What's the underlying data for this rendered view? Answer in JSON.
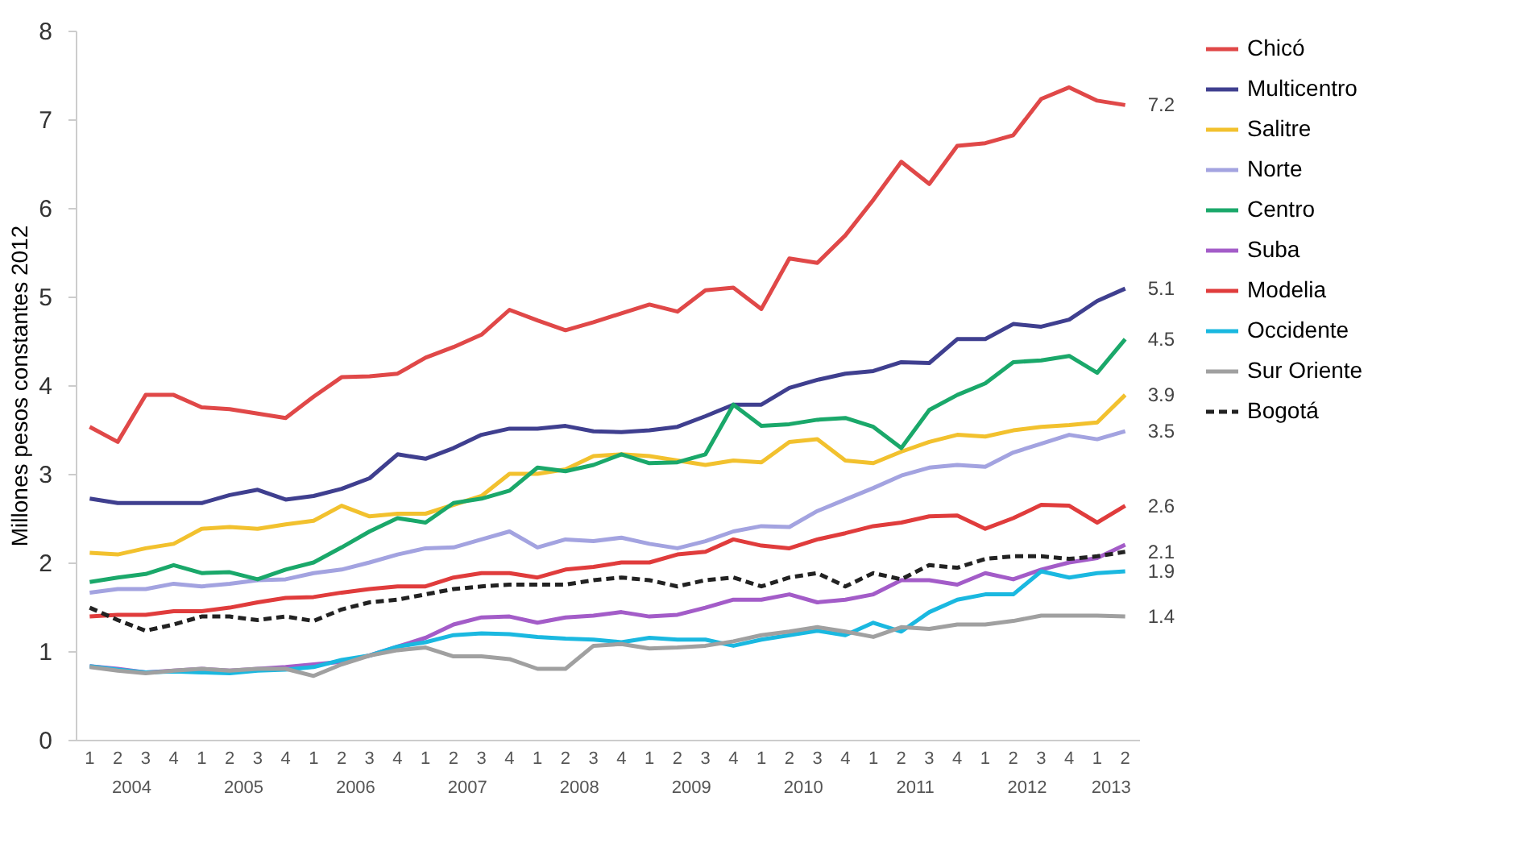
{
  "chart_data": {
    "type": "line",
    "ylabel": "Millones pesos constantes 2012",
    "ylim": [
      0,
      8
    ],
    "yticks": [
      0,
      1,
      2,
      3,
      4,
      5,
      6,
      7,
      8
    ],
    "grid": false,
    "legend": "right",
    "marker": "none",
    "categories": [
      "1",
      "2",
      "3",
      "4",
      "1",
      "2",
      "3",
      "4",
      "1",
      "2",
      "3",
      "4",
      "1",
      "2",
      "3",
      "4",
      "1",
      "2",
      "3",
      "4",
      "1",
      "2",
      "3",
      "4",
      "1",
      "2",
      "3",
      "4",
      "1",
      "2",
      "3",
      "4",
      "1",
      "2",
      "3",
      "4",
      "1",
      "2"
    ],
    "annotations": [
      "2004",
      "2005",
      "2006",
      "2007",
      "2008",
      "2009",
      "2010",
      "2011",
      "2012",
      "2013"
    ],
    "series": [
      {
        "name": "Chicó",
        "color": "#e04848",
        "values": [
          3.53,
          3.36,
          3.89,
          3.89,
          3.75,
          3.73,
          3.68,
          3.63,
          3.87,
          4.09,
          4.1,
          4.13,
          4.31,
          4.43,
          4.57,
          4.85,
          4.73,
          4.62,
          4.71,
          4.81,
          4.91,
          4.83,
          5.07,
          5.1,
          4.86,
          5.43,
          5.38,
          5.69,
          6.09,
          6.52,
          6.27,
          6.7,
          6.73,
          6.82,
          7.23,
          7.36,
          7.21,
          7.16
        ],
        "value_labels": [
          null,
          null,
          null,
          null,
          null,
          null,
          null,
          null,
          null,
          null,
          null,
          null,
          null,
          null,
          null,
          null,
          null,
          null,
          null,
          null,
          null,
          null,
          null,
          null,
          null,
          null,
          null,
          null,
          null,
          null,
          null,
          null,
          null,
          null,
          null,
          null,
          null,
          "7.2"
        ]
      },
      {
        "name": "Multicentro",
        "color": "#3f3f8f",
        "values": [
          2.72,
          2.67,
          2.67,
          2.67,
          2.67,
          2.76,
          2.82,
          2.71,
          2.75,
          2.83,
          2.95,
          3.22,
          3.17,
          3.29,
          3.44,
          3.51,
          3.51,
          3.54,
          3.48,
          3.47,
          3.49,
          3.53,
          3.65,
          3.78,
          3.78,
          3.97,
          4.06,
          4.13,
          4.16,
          4.26,
          4.25,
          4.52,
          4.52,
          4.69,
          4.66,
          4.74,
          4.95,
          5.09
        ],
        "value_labels": [
          null,
          null,
          null,
          null,
          null,
          null,
          null,
          null,
          null,
          null,
          null,
          null,
          null,
          null,
          null,
          null,
          null,
          null,
          null,
          null,
          null,
          null,
          null,
          null,
          null,
          null,
          null,
          null,
          null,
          null,
          null,
          null,
          null,
          null,
          null,
          null,
          null,
          "5.1"
        ]
      },
      {
        "name": "Salitre",
        "color": "#f2c12e",
        "values": [
          2.11,
          2.09,
          2.16,
          2.21,
          2.38,
          2.4,
          2.38,
          2.43,
          2.47,
          2.64,
          2.52,
          2.55,
          2.55,
          2.65,
          2.75,
          3.0,
          3.0,
          3.05,
          3.2,
          3.22,
          3.2,
          3.15,
          3.1,
          3.15,
          3.13,
          3.36,
          3.39,
          3.15,
          3.12,
          3.25,
          3.36,
          3.44,
          3.42,
          3.49,
          3.53,
          3.55,
          3.58,
          3.89
        ],
        "value_labels": [
          null,
          null,
          null,
          null,
          null,
          null,
          null,
          null,
          null,
          null,
          null,
          null,
          null,
          null,
          null,
          null,
          null,
          null,
          null,
          null,
          null,
          null,
          null,
          null,
          null,
          null,
          null,
          null,
          null,
          null,
          null,
          null,
          null,
          null,
          null,
          null,
          null,
          "3.9"
        ]
      },
      {
        "name": "Norte",
        "color": "#a3a3e0",
        "values": [
          1.66,
          1.7,
          1.7,
          1.76,
          1.73,
          1.76,
          1.8,
          1.81,
          1.88,
          1.92,
          2.0,
          2.09,
          2.16,
          2.17,
          2.26,
          2.35,
          2.17,
          2.26,
          2.24,
          2.28,
          2.21,
          2.16,
          2.24,
          2.35,
          2.41,
          2.4,
          2.58,
          2.71,
          2.84,
          2.98,
          3.07,
          3.1,
          3.08,
          3.24,
          3.34,
          3.44,
          3.39,
          3.48
        ],
        "value_labels": [
          null,
          null,
          null,
          null,
          null,
          null,
          null,
          null,
          null,
          null,
          null,
          null,
          null,
          null,
          null,
          null,
          null,
          null,
          null,
          null,
          null,
          null,
          null,
          null,
          null,
          null,
          null,
          null,
          null,
          null,
          null,
          null,
          null,
          null,
          null,
          null,
          null,
          "3.5"
        ]
      },
      {
        "name": "Centro",
        "color": "#1aa86a",
        "values": [
          1.78,
          1.83,
          1.87,
          1.97,
          1.88,
          1.89,
          1.81,
          1.92,
          2.0,
          2.17,
          2.35,
          2.5,
          2.45,
          2.67,
          2.72,
          2.81,
          3.07,
          3.03,
          3.1,
          3.22,
          3.12,
          3.13,
          3.22,
          3.78,
          3.54,
          3.56,
          3.61,
          3.63,
          3.53,
          3.29,
          3.72,
          3.89,
          4.02,
          4.26,
          4.28,
          4.33,
          4.14,
          4.52
        ],
        "value_labels": [
          null,
          null,
          null,
          null,
          null,
          null,
          null,
          null,
          null,
          null,
          null,
          null,
          null,
          null,
          null,
          null,
          null,
          null,
          null,
          null,
          null,
          null,
          null,
          null,
          null,
          null,
          null,
          null,
          null,
          null,
          null,
          null,
          null,
          null,
          null,
          null,
          null,
          "4.5"
        ]
      },
      {
        "name": "Suba",
        "color": "#a35cc8",
        "values": [
          0.83,
          0.8,
          0.76,
          0.78,
          0.8,
          0.78,
          0.8,
          0.82,
          0.85,
          0.88,
          0.95,
          1.05,
          1.15,
          1.3,
          1.38,
          1.39,
          1.32,
          1.38,
          1.4,
          1.44,
          1.39,
          1.41,
          1.49,
          1.58,
          1.58,
          1.64,
          1.55,
          1.58,
          1.64,
          1.8,
          1.8,
          1.75,
          1.88,
          1.81,
          1.92,
          2.0,
          2.05,
          2.2
        ]
      },
      {
        "name": "Modelia",
        "color": "#e03c3c",
        "values": [
          1.39,
          1.41,
          1.41,
          1.45,
          1.45,
          1.49,
          1.55,
          1.6,
          1.61,
          1.66,
          1.7,
          1.73,
          1.73,
          1.83,
          1.88,
          1.88,
          1.83,
          1.92,
          1.95,
          2.0,
          2.0,
          2.09,
          2.12,
          2.26,
          2.19,
          2.16,
          2.26,
          2.33,
          2.41,
          2.45,
          2.52,
          2.53,
          2.38,
          2.5,
          2.65,
          2.64,
          2.45,
          2.64
        ],
        "value_labels": [
          null,
          null,
          null,
          null,
          null,
          null,
          null,
          null,
          null,
          null,
          null,
          null,
          null,
          null,
          null,
          null,
          null,
          null,
          null,
          null,
          null,
          null,
          null,
          null,
          null,
          null,
          null,
          null,
          null,
          null,
          null,
          null,
          null,
          null,
          null,
          null,
          null,
          "2.6"
        ]
      },
      {
        "name": "Occidente",
        "color": "#1ab8e0",
        "values": [
          0.83,
          0.79,
          0.76,
          0.77,
          0.76,
          0.75,
          0.78,
          0.79,
          0.82,
          0.9,
          0.95,
          1.05,
          1.1,
          1.18,
          1.2,
          1.19,
          1.16,
          1.14,
          1.13,
          1.1,
          1.15,
          1.13,
          1.13,
          1.06,
          1.13,
          1.18,
          1.23,
          1.18,
          1.32,
          1.22,
          1.44,
          1.58,
          1.64,
          1.64,
          1.9,
          1.83,
          1.88,
          1.9
        ],
        "value_labels": [
          null,
          null,
          null,
          null,
          null,
          null,
          null,
          null,
          null,
          null,
          null,
          null,
          null,
          null,
          null,
          null,
          null,
          null,
          null,
          null,
          null,
          null,
          null,
          null,
          null,
          null,
          null,
          null,
          null,
          null,
          null,
          null,
          null,
          null,
          null,
          null,
          null,
          "1.9"
        ]
      },
      {
        "name": "Sur Oriente",
        "color": "#a0a0a0",
        "values": [
          0.82,
          0.78,
          0.75,
          0.78,
          0.8,
          0.78,
          0.8,
          0.8,
          0.72,
          0.85,
          0.95,
          1.01,
          1.04,
          0.94,
          0.94,
          0.91,
          0.8,
          0.8,
          1.06,
          1.08,
          1.03,
          1.04,
          1.06,
          1.11,
          1.18,
          1.22,
          1.27,
          1.22,
          1.16,
          1.27,
          1.25,
          1.3,
          1.3,
          1.34,
          1.4,
          1.4,
          1.4,
          1.39
        ],
        "value_labels": [
          null,
          null,
          null,
          null,
          null,
          null,
          null,
          null,
          null,
          null,
          null,
          null,
          null,
          null,
          null,
          null,
          null,
          null,
          null,
          null,
          null,
          null,
          null,
          null,
          null,
          null,
          null,
          null,
          null,
          null,
          null,
          null,
          null,
          null,
          null,
          null,
          null,
          "1.4"
        ]
      },
      {
        "name": "Bogotá",
        "color": "#222222",
        "line_style": "dashed",
        "values": [
          1.49,
          1.35,
          1.23,
          1.3,
          1.39,
          1.39,
          1.35,
          1.39,
          1.34,
          1.47,
          1.55,
          1.58,
          1.64,
          1.7,
          1.73,
          1.75,
          1.75,
          1.75,
          1.8,
          1.83,
          1.8,
          1.73,
          1.8,
          1.83,
          1.73,
          1.83,
          1.88,
          1.73,
          1.88,
          1.81,
          1.97,
          1.94,
          2.04,
          2.07,
          2.07,
          2.04,
          2.07,
          2.12
        ],
        "value_labels": [
          null,
          null,
          null,
          null,
          null,
          null,
          null,
          null,
          null,
          null,
          null,
          null,
          null,
          null,
          null,
          null,
          null,
          null,
          null,
          null,
          null,
          null,
          null,
          null,
          null,
          null,
          null,
          null,
          null,
          null,
          null,
          null,
          null,
          null,
          null,
          null,
          null,
          "2.1"
        ]
      }
    ]
  }
}
